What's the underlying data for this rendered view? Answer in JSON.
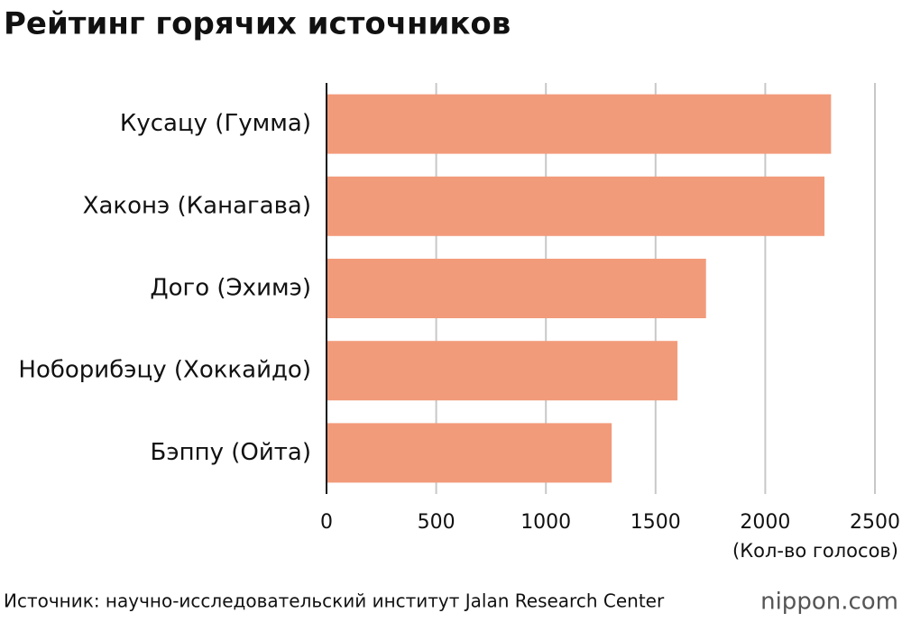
{
  "chart_data": {
    "type": "bar",
    "orientation": "horizontal",
    "title": "Рейтинг горячих источников",
    "categories": [
      "Кусацу (Гумма)",
      "Хаконэ (Канагава)",
      "Дого (Эхимэ)",
      "Ноборибэцу (Хоккайдо)",
      "Бэппу (Ойта)"
    ],
    "values": [
      2300,
      2270,
      1730,
      1600,
      1300
    ],
    "color": "#f29b7b",
    "xlim": [
      0,
      2500
    ],
    "xticks": [
      0,
      500,
      1000,
      1500,
      2000,
      2500
    ],
    "x_label": "(Кол-во голосов)",
    "grid": true,
    "source": "Источник: научно-исследовательский институт Jalan Research Center",
    "brand": "nippon.com"
  }
}
